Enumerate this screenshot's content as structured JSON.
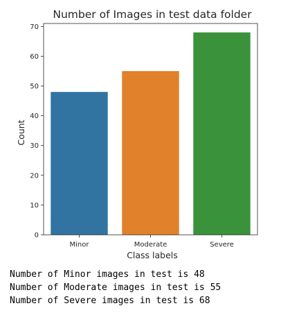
{
  "chart_data": {
    "type": "bar",
    "title": "Number of Images in test data folder",
    "xlabel": "Class labels",
    "ylabel": "Count",
    "categories": [
      "Minor",
      "Moderate",
      "Severe"
    ],
    "values": [
      48,
      55,
      68
    ],
    "colors": [
      "#3274a1",
      "#e1812c",
      "#3a923a"
    ],
    "ylim": [
      0,
      71
    ],
    "yticks": [
      0,
      10,
      20,
      30,
      40,
      50,
      60,
      70
    ],
    "grid": false,
    "legend": "none"
  },
  "output": {
    "lines": [
      "Number of Minor images in test is 48",
      "Number of Moderate images in test is 55",
      "Number of Severe images in test is 68"
    ]
  }
}
